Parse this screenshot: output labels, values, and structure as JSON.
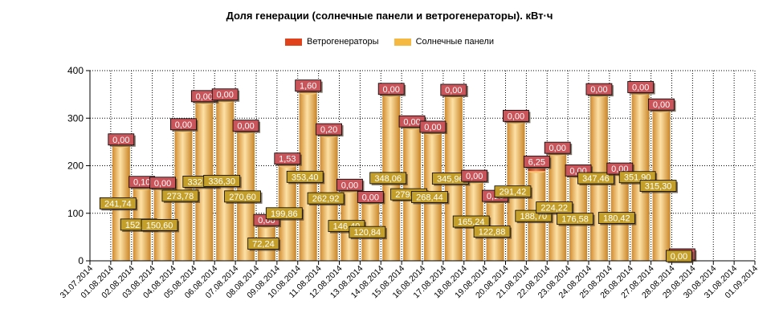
{
  "chart_data": {
    "type": "bar",
    "title": "Доля генерации (солнечные панели и ветрогенераторы). кВт·ч",
    "xlabel": "",
    "ylabel": "",
    "ylim": [
      0,
      400
    ],
    "yticks": [
      0,
      100,
      200,
      300,
      400
    ],
    "grid": true,
    "legend_position": "top",
    "stacked": true,
    "categories": [
      "31.07.2014",
      "01.08.2014",
      "02.08.2014",
      "03.08.2014",
      "04.08.2014",
      "05.08.2014",
      "06.08.2014",
      "07.08.2014",
      "08.08.2014",
      "09.08.2014",
      "10.08.2014",
      "11.08.2014",
      "12.08.2014",
      "13.08.2014",
      "14.08.2014",
      "15.08.2014",
      "16.08.2014",
      "17.08.2014",
      "18.08.2014",
      "19.08.2014",
      "20.08.2014",
      "21.08.2014",
      "22.08.2014",
      "23.08.2014",
      "24.08.2014",
      "25.08.2014",
      "26.08.2014",
      "27.08.2014",
      "28.08.2014",
      "29.08.2014",
      "30.08.2014",
      "31.08.2014",
      "01.09.2014"
    ],
    "series": [
      {
        "name": "Ветрогенераторы",
        "color": "#e0431c",
        "label_color": "#c9545a",
        "values": [
          null,
          0.0,
          0.1,
          0.0,
          0.0,
          0.0,
          0.0,
          0.0,
          0.0,
          1.53,
          1.6,
          0.2,
          0.0,
          0.0,
          0.0,
          0.0,
          0.0,
          0.0,
          0.0,
          0.16,
          0.0,
          6.25,
          0.0,
          0.0,
          0.0,
          0.0,
          0.0,
          0.0,
          0.0,
          null,
          null,
          null,
          null
        ],
        "labels": [
          "",
          "0,00",
          "0,10",
          "0,00",
          "0,00",
          "0,00",
          "0,00",
          "0,00",
          "0,00",
          "1,53",
          "1,60",
          "0,20",
          "0,00",
          "0,00",
          "0,00",
          "0,00",
          "0,00",
          "0,00",
          "0,00",
          "0,16",
          "0,00",
          "6,25",
          "0,00",
          "0,00",
          "0,00",
          "0,00",
          "0,00",
          "0,00",
          "0,00",
          "",
          "",
          "",
          ""
        ]
      },
      {
        "name": "Солнечные панели",
        "color": "#f5b942",
        "label_color": "#c4a02a",
        "values": [
          null,
          241.74,
          152.28,
          150.6,
          273.78,
          332.82,
          336.3,
          270.6,
          72.24,
          199.86,
          353.4,
          262.92,
          146.4,
          120.84,
          348.06,
          279.72,
          268.44,
          345.96,
          165.24,
          122.88,
          291.42,
          188.7,
          224.22,
          176.58,
          347.46,
          180.42,
          351.9,
          315.3,
          0.0,
          null,
          null,
          null,
          null
        ],
        "labels": [
          "",
          "241,74",
          "152,28",
          "150,60",
          "273,78",
          "332,82",
          "336,30",
          "270,60",
          "72,24",
          "199,86",
          "353,40",
          "262,92",
          "146,40",
          "120,84",
          "348,06",
          "279,72",
          "268,44",
          "345,96",
          "165,24",
          "122,88",
          "291,42",
          "188,70",
          "224,22",
          "176,58",
          "347,46",
          "180,42",
          "351,90",
          "315,30",
          "0,00",
          "",
          "",
          "",
          ""
        ]
      }
    ]
  }
}
